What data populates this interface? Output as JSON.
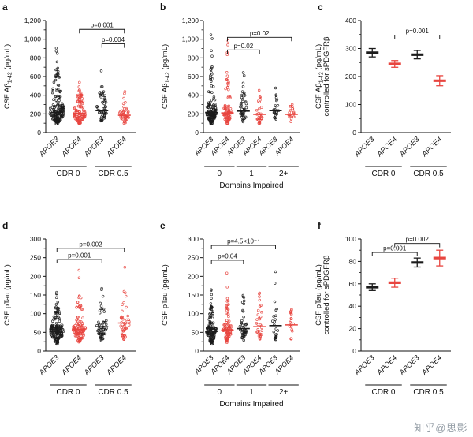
{
  "watermark": "知乎@思影",
  "colors": {
    "black": "#1b1b1b",
    "red": "#e8453f"
  },
  "chart_data": [
    {
      "letter": "a",
      "type": "scatter-violin",
      "ylabel": "CSF Aβ1-42 (pg/mL)",
      "ylabel_lines": [
        [
          {
            "t": "CSF Aβ"
          },
          {
            "t": "1-42",
            "sub": true
          },
          {
            "t": " (pg/mL)"
          }
        ]
      ],
      "ylim": [
        0,
        1200
      ],
      "yticks": [
        {
          "v": 0,
          "l": "0"
        },
        {
          "v": 200,
          "l": "200"
        },
        {
          "v": 400,
          "l": "400"
        },
        {
          "v": 600,
          "l": "600"
        },
        {
          "v": 800,
          "l": "800"
        },
        {
          "v": 1000,
          "l": "1,000"
        },
        {
          "v": 1200,
          "l": "1,200"
        }
      ],
      "groups": [
        {
          "label": "APOE3",
          "color": "black",
          "n": 170,
          "min": 90,
          "q1": 170,
          "med": 215,
          "q3": 300,
          "max": 1070
        },
        {
          "label": "APOE4",
          "color": "red",
          "n": 110,
          "min": 90,
          "q1": 160,
          "med": 205,
          "q3": 280,
          "max": 620
        },
        {
          "label": "APOE3",
          "color": "black",
          "n": 60,
          "min": 110,
          "q1": 180,
          "med": 235,
          "q3": 330,
          "max": 660
        },
        {
          "label": "APOE4",
          "color": "red",
          "n": 45,
          "min": 90,
          "q1": 150,
          "med": 185,
          "q3": 240,
          "max": 450
        }
      ],
      "spans": [
        {
          "label": "CDR 0",
          "from": 0,
          "to": 1
        },
        {
          "label": "CDR 0.5",
          "from": 2,
          "to": 3
        }
      ],
      "xtitle": "",
      "pvalues": [
        {
          "text": "p=0.001",
          "from": 1,
          "to": 3,
          "y": 1105
        },
        {
          "text": "p=0.004",
          "from": 2,
          "to": 3,
          "y": 950
        }
      ]
    },
    {
      "letter": "b",
      "type": "scatter-violin",
      "ylabel": "CSF Aβ1-42 (pg/mL)",
      "ylabel_lines": [
        [
          {
            "t": "CSF Aβ"
          },
          {
            "t": "1-42",
            "sub": true
          },
          {
            "t": " (pg/mL)"
          }
        ]
      ],
      "ylim": [
        0,
        1200
      ],
      "yticks": [
        {
          "v": 0,
          "l": "0"
        },
        {
          "v": 200,
          "l": "200"
        },
        {
          "v": 400,
          "l": "400"
        },
        {
          "v": 600,
          "l": "600"
        },
        {
          "v": 800,
          "l": "800"
        },
        {
          "v": 1000,
          "l": "1,000"
        },
        {
          "v": 1200,
          "l": "1,200"
        }
      ],
      "groups": [
        {
          "label": "APOE3",
          "color": "black",
          "n": 140,
          "min": 90,
          "q1": 170,
          "med": 215,
          "q3": 300,
          "max": 1070
        },
        {
          "label": "APOE4",
          "color": "red",
          "n": 90,
          "min": 90,
          "q1": 160,
          "med": 210,
          "q3": 290,
          "max": 1000
        },
        {
          "label": "APOE3",
          "color": "black",
          "n": 45,
          "min": 110,
          "q1": 180,
          "med": 230,
          "q3": 330,
          "max": 700
        },
        {
          "label": "APOE4",
          "color": "red",
          "n": 35,
          "min": 90,
          "q1": 150,
          "med": 195,
          "q3": 260,
          "max": 480
        },
        {
          "label": "APOE3",
          "color": "black",
          "n": 25,
          "min": 120,
          "q1": 180,
          "med": 235,
          "q3": 300,
          "max": 520
        },
        {
          "label": "APOE4",
          "color": "red",
          "n": 20,
          "min": 100,
          "q1": 160,
          "med": 195,
          "q3": 240,
          "max": 430
        }
      ],
      "spans": [
        {
          "label": "0",
          "from": 0,
          "to": 1
        },
        {
          "label": "1",
          "from": 2,
          "to": 3
        },
        {
          "label": "2+",
          "from": 4,
          "to": 5
        }
      ],
      "xtitle": "Domains Impaired",
      "pvalues": [
        {
          "text": "p=0.02",
          "from": 1,
          "to": 5,
          "y": 1020
        },
        {
          "text": "p=0.02",
          "from": 1,
          "to": 3,
          "y": 885
        }
      ]
    },
    {
      "letter": "c",
      "type": "mean-error",
      "ylabel": "CSF Aβ1-42 (pg/mL) controlled for sPDGFRβ",
      "ylabel_lines": [
        [
          {
            "t": "CSF Aβ"
          },
          {
            "t": "1-42",
            "sub": true
          },
          {
            "t": " (pg/mL)"
          }
        ],
        [
          {
            "t": "controlled for sPDGFRβ"
          }
        ]
      ],
      "ylim": [
        0,
        400
      ],
      "yticks": [
        {
          "v": 0,
          "l": "0"
        },
        {
          "v": 100,
          "l": "100"
        },
        {
          "v": 200,
          "l": "200"
        },
        {
          "v": 300,
          "l": "300"
        },
        {
          "v": 400,
          "l": "400"
        }
      ],
      "groups": [
        {
          "label": "APOE3",
          "color": "black",
          "mean": 285,
          "err": 15
        },
        {
          "label": "APOE4",
          "color": "red",
          "mean": 245,
          "err": 12
        },
        {
          "label": "APOE3",
          "color": "black",
          "mean": 278,
          "err": 15
        },
        {
          "label": "APOE4",
          "color": "red",
          "mean": 185,
          "err": 18
        }
      ],
      "spans": [
        {
          "label": "CDR 0",
          "from": 0,
          "to": 1
        },
        {
          "label": "CDR 0.5",
          "from": 2,
          "to": 3
        }
      ],
      "xtitle": "",
      "pvalues": [
        {
          "text": "p=0.001",
          "from": 1,
          "to": 3,
          "y": 348
        }
      ]
    },
    {
      "letter": "d",
      "type": "scatter-violin",
      "ylabel": "CSF pTau (pg/mL)",
      "ylabel_lines": [
        [
          {
            "t": "CSF pTau (pg/mL)"
          }
        ]
      ],
      "ylim": [
        0,
        300
      ],
      "yticks": [
        {
          "v": 0,
          "l": "0"
        },
        {
          "v": 50,
          "l": "50"
        },
        {
          "v": 100,
          "l": "100"
        },
        {
          "v": 150,
          "l": "150"
        },
        {
          "v": 200,
          "l": "200"
        },
        {
          "v": 250,
          "l": "250"
        },
        {
          "v": 300,
          "l": "300"
        }
      ],
      "groups": [
        {
          "label": "APOE3",
          "color": "black",
          "n": 170,
          "min": 18,
          "q1": 42,
          "med": 53,
          "q3": 68,
          "max": 170
        },
        {
          "label": "APOE4",
          "color": "red",
          "n": 110,
          "min": 22,
          "q1": 45,
          "med": 58,
          "q3": 75,
          "max": 230
        },
        {
          "label": "APOE3",
          "color": "black",
          "n": 60,
          "min": 28,
          "q1": 50,
          "med": 65,
          "q3": 85,
          "max": 215
        },
        {
          "label": "APOE4",
          "color": "red",
          "n": 45,
          "min": 30,
          "q1": 55,
          "med": 75,
          "q3": 95,
          "max": 250
        }
      ],
      "spans": [
        {
          "label": "CDR 0",
          "from": 0,
          "to": 1
        },
        {
          "label": "CDR 0.5",
          "from": 2,
          "to": 3
        }
      ],
      "xtitle": "",
      "pvalues": [
        {
          "text": "p=0.002",
          "from": 0,
          "to": 3,
          "y": 275
        },
        {
          "text": "p=0.001",
          "from": 0,
          "to": 2,
          "y": 245
        }
      ]
    },
    {
      "letter": "e",
      "type": "scatter-violin",
      "ylabel": "CSF pTau (pg/mL)",
      "ylabel_lines": [
        [
          {
            "t": "CSF pTau (pg/mL)"
          }
        ]
      ],
      "ylim": [
        0,
        300
      ],
      "yticks": [
        {
          "v": 0,
          "l": "0"
        },
        {
          "v": 50,
          "l": "50"
        },
        {
          "v": 100,
          "l": "100"
        },
        {
          "v": 150,
          "l": "150"
        },
        {
          "v": 200,
          "l": "200"
        },
        {
          "v": 250,
          "l": "250"
        },
        {
          "v": 300,
          "l": "300"
        }
      ],
      "groups": [
        {
          "label": "APOE3",
          "color": "black",
          "n": 140,
          "min": 18,
          "q1": 42,
          "med": 53,
          "q3": 68,
          "max": 170
        },
        {
          "label": "APOE4",
          "color": "red",
          "n": 90,
          "min": 22,
          "q1": 44,
          "med": 56,
          "q3": 72,
          "max": 215
        },
        {
          "label": "APOE3",
          "color": "black",
          "n": 45,
          "min": 25,
          "q1": 48,
          "med": 60,
          "q3": 80,
          "max": 210
        },
        {
          "label": "APOE4",
          "color": "red",
          "n": 35,
          "min": 28,
          "q1": 50,
          "med": 65,
          "q3": 90,
          "max": 230
        },
        {
          "label": "APOE3",
          "color": "black",
          "n": 25,
          "min": 30,
          "q1": 52,
          "med": 68,
          "q3": 95,
          "max": 240
        },
        {
          "label": "APOE4",
          "color": "red",
          "n": 20,
          "min": 32,
          "q1": 55,
          "med": 70,
          "q3": 90,
          "max": 135
        }
      ],
      "spans": [
        {
          "label": "0",
          "from": 0,
          "to": 1
        },
        {
          "label": "1",
          "from": 2,
          "to": 3
        },
        {
          "label": "2+",
          "from": 4,
          "to": 5
        }
      ],
      "xtitle": "Domains Impaired",
      "pvalues": [
        {
          "text": "p=4.5×10⁻⁴",
          "from": 0,
          "to": 4,
          "y": 283
        },
        {
          "text": "p=0.04",
          "from": 0,
          "to": 2,
          "y": 243
        }
      ]
    },
    {
      "letter": "f",
      "type": "mean-error",
      "ylabel": "CSF pTau (pg/mL) controlled for sPDGFRβ",
      "ylabel_lines": [
        [
          {
            "t": "CSF pTau (pg/mL)"
          }
        ],
        [
          {
            "t": "controlled for sPDGFRβ"
          }
        ]
      ],
      "ylim": [
        0,
        100
      ],
      "yticks": [
        {
          "v": 0,
          "l": "0"
        },
        {
          "v": 20,
          "l": "20"
        },
        {
          "v": 40,
          "l": "40"
        },
        {
          "v": 60,
          "l": "60"
        },
        {
          "v": 80,
          "l": "80"
        },
        {
          "v": 100,
          "l": "100"
        }
      ],
      "groups": [
        {
          "label": "APOE3",
          "color": "black",
          "mean": 57,
          "err": 3
        },
        {
          "label": "APOE4",
          "color": "red",
          "mean": 61,
          "err": 4
        },
        {
          "label": "APOE3",
          "color": "black",
          "mean": 79,
          "err": 4
        },
        {
          "label": "APOE4",
          "color": "red",
          "mean": 83,
          "err": 7
        }
      ],
      "spans": [
        {
          "label": "CDR 0",
          "from": 0,
          "to": 1
        },
        {
          "label": "CDR 0.5",
          "from": 2,
          "to": 3
        }
      ],
      "xtitle": "",
      "pvalues": [
        {
          "text": "p=0.002",
          "from": 1,
          "to": 3,
          "y": 96
        },
        {
          "text": "p=0.001",
          "from": 0,
          "to": 2,
          "y": 88
        }
      ]
    }
  ]
}
